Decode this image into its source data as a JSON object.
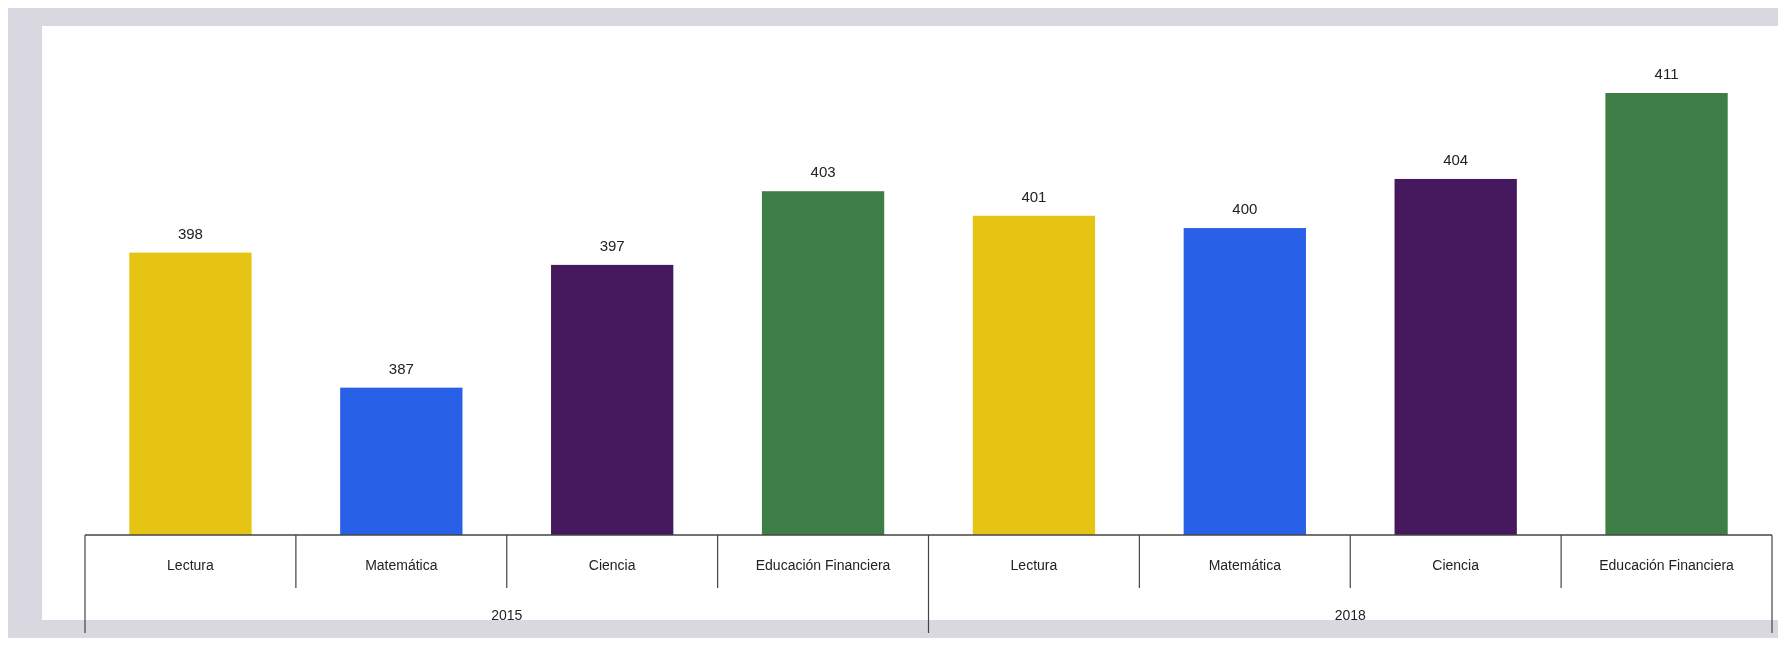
{
  "chart_data": {
    "type": "bar",
    "categories": [
      "Lectura",
      "Matemática",
      "Ciencia",
      "Educación Financiera",
      "Lectura",
      "Matemática",
      "Ciencia",
      "Educación Financiera"
    ],
    "values": [
      398,
      387,
      397,
      403,
      401,
      400,
      404,
      411
    ],
    "colors": [
      "#e6c414",
      "#2860e8",
      "#46195e",
      "#3f7d46",
      "#e6c414",
      "#2860e8",
      "#46195e",
      "#3f7d46"
    ],
    "ylim": [
      375,
      411
    ],
    "data_labels": true,
    "tick_labels": "x",
    "annotations": [
      "2015",
      "2018"
    ]
  }
}
